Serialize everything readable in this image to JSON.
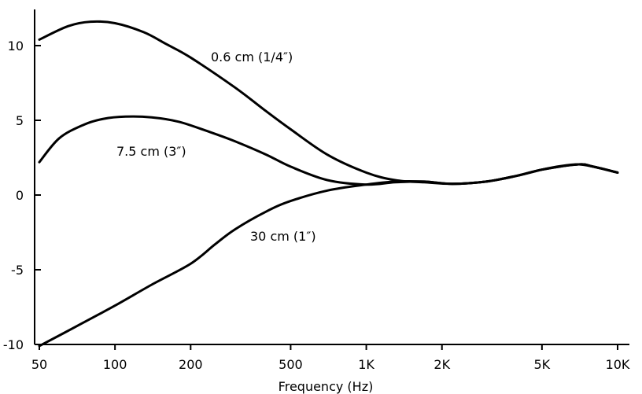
{
  "chart_data": {
    "type": "line",
    "xlabel": "Frequency (Hz)",
    "ylabel": "",
    "x_scale": "log",
    "xlim": [
      50,
      10000
    ],
    "ylim": [
      -10,
      12
    ],
    "x_ticks": [
      {
        "value": 50,
        "label": "50"
      },
      {
        "value": 100,
        "label": "100"
      },
      {
        "value": 200,
        "label": "200"
      },
      {
        "value": 500,
        "label": "500"
      },
      {
        "value": 1000,
        "label": "1K"
      },
      {
        "value": 2000,
        "label": "2K"
      },
      {
        "value": 5000,
        "label": "5K"
      },
      {
        "value": 10000,
        "label": "10K"
      }
    ],
    "y_ticks": [
      {
        "value": 10,
        "label": "10"
      },
      {
        "value": 5,
        "label": "5"
      },
      {
        "value": 0,
        "label": "0"
      },
      {
        "value": -5,
        "label": "-5"
      },
      {
        "value": -10,
        "label": "-10"
      }
    ],
    "grid": false,
    "series": [
      {
        "name": "0.6 cm (1/4″)",
        "x": [
          50,
          65,
          80,
          100,
          130,
          160,
          200,
          300,
          400,
          500,
          700,
          1000,
          1300,
          1700,
          2200,
          3000,
          4000,
          5000,
          6000,
          7000,
          8000,
          10000
        ],
        "y": [
          10.4,
          11.3,
          11.6,
          11.5,
          10.9,
          10.1,
          9.2,
          7.2,
          5.6,
          4.4,
          2.7,
          1.5,
          1.0,
          0.85,
          0.75,
          0.9,
          1.3,
          1.7,
          1.95,
          2.05,
          1.9,
          1.5
        ]
      },
      {
        "name": "7.5 cm (3″)",
        "x": [
          50,
          60,
          75,
          90,
          110,
          140,
          180,
          240,
          300,
          400,
          500,
          700,
          1000,
          1300,
          1700,
          2200,
          3000,
          4000,
          5000,
          7000,
          8000,
          10000
        ],
        "y": [
          2.2,
          3.8,
          4.7,
          5.1,
          5.25,
          5.2,
          4.9,
          4.2,
          3.6,
          2.7,
          1.9,
          1.0,
          0.7,
          0.85,
          0.9,
          0.75,
          0.9,
          1.3,
          1.7,
          2.05,
          1.9,
          1.5
        ]
      },
      {
        "name": "30 cm (1″)",
        "x": [
          50,
          70,
          100,
          140,
          200,
          250,
          300,
          400,
          500,
          700,
          1000,
          1300,
          1700,
          2200,
          3000,
          4000,
          5000,
          7000,
          8000,
          10000
        ],
        "y": [
          -10.1,
          -8.8,
          -7.4,
          -6.0,
          -4.6,
          -3.3,
          -2.3,
          -1.1,
          -0.4,
          0.3,
          0.7,
          0.9,
          0.9,
          0.75,
          0.9,
          1.3,
          1.7,
          2.05,
          1.9,
          1.5
        ]
      }
    ]
  }
}
